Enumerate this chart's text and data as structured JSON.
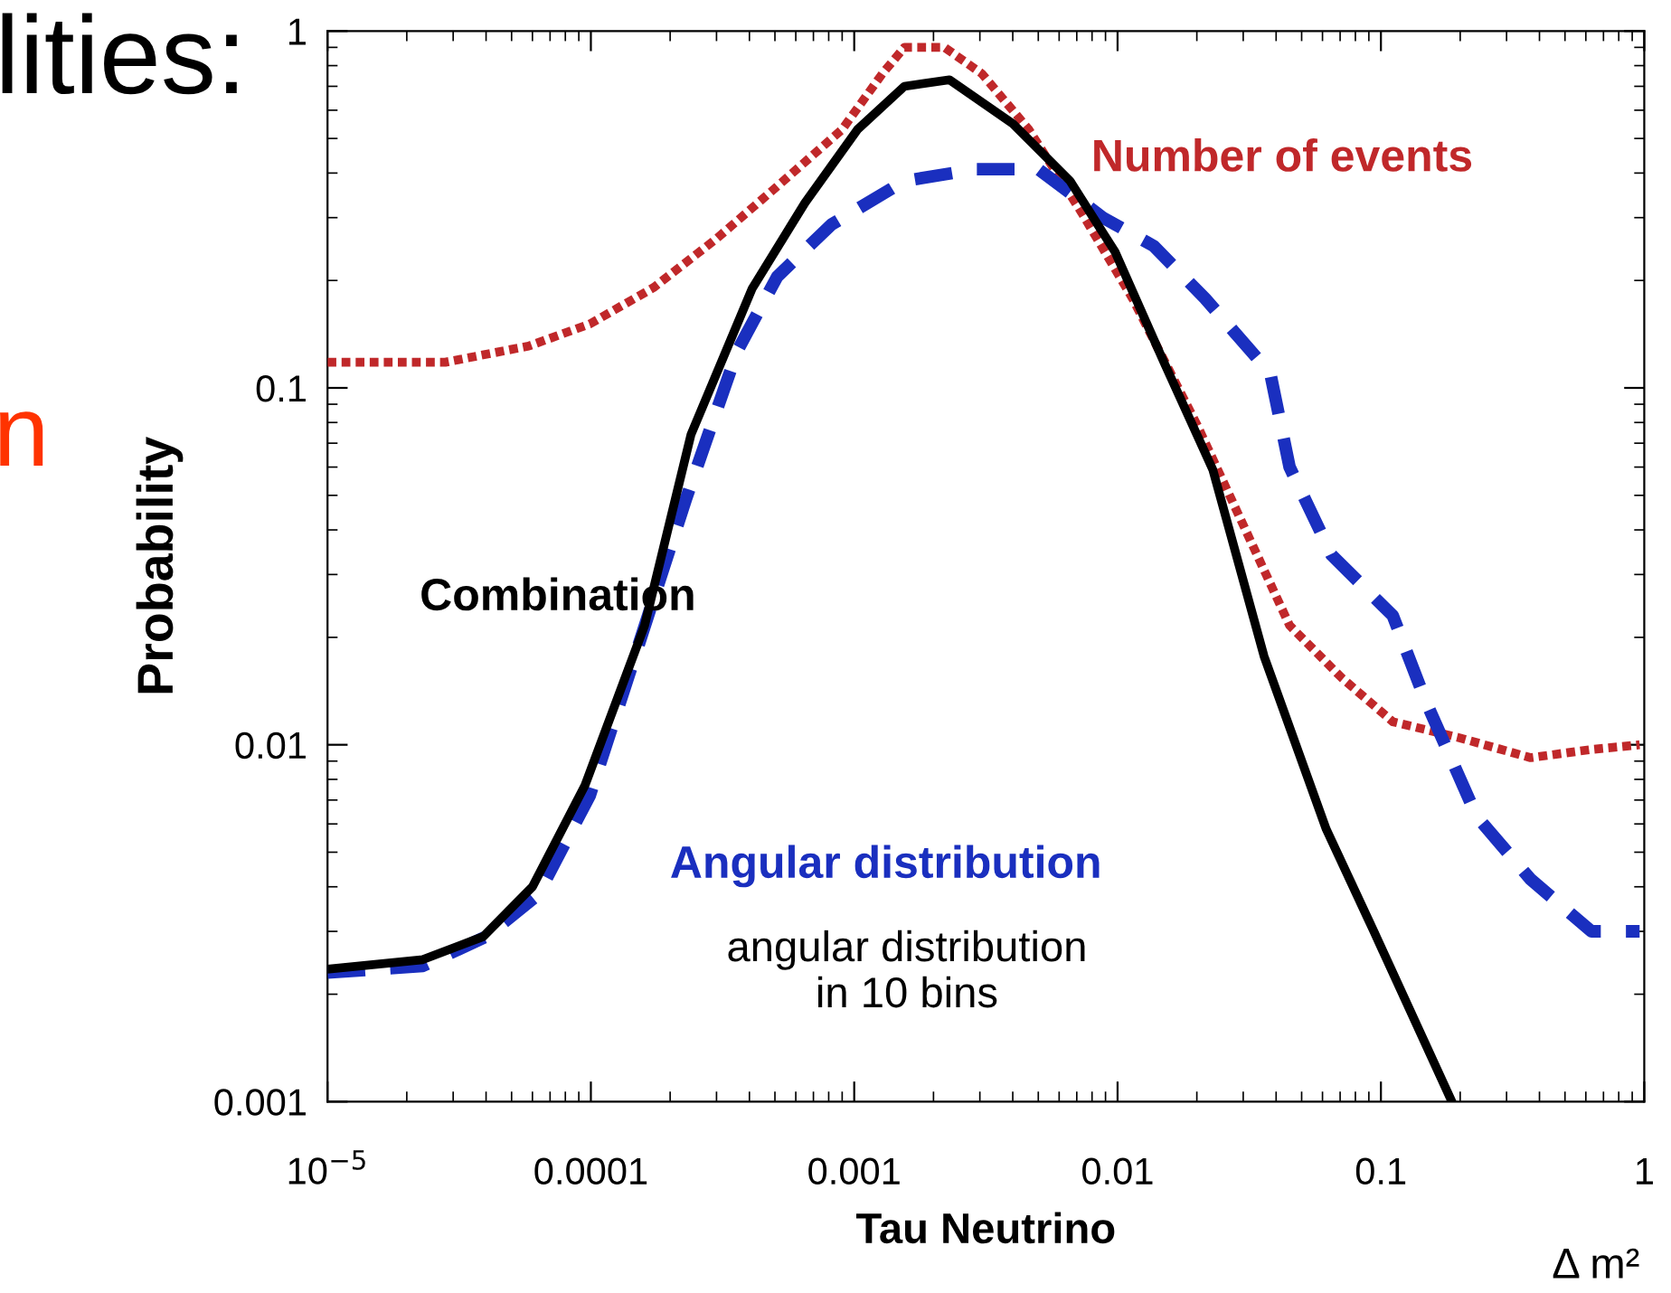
{
  "chart_data": {
    "type": "line",
    "xlabel": "Tau Neutrino",
    "ylabel": "Probability",
    "log": "xy",
    "grid": false,
    "legend": false,
    "xlim": [
      1e-05,
      1
    ],
    "ylim": [
      0.001,
      1
    ],
    "xticks": [
      {
        "value": 1e-05,
        "label": "10$^{−5}$"
      },
      0.0001,
      0.001,
      0.01,
      0.1,
      1
    ],
    "yticks": [
      0.001,
      0.01,
      0.1,
      1
    ],
    "annotations": [
      "angular distribution\nin 10 bins",
      "Δ m²",
      "lities:",
      "n"
    ],
    "series": [
      {
        "name": "Number of events",
        "color": "#c0282a",
        "line_style": "dotted",
        "x": [
          1e-05,
          2.8e-05,
          5.8e-05,
          9.9e-05,
          0.000173,
          0.0003,
          0.00051,
          0.0009,
          0.00128,
          0.00155,
          0.0022,
          0.00305,
          0.0046,
          0.0073,
          0.0114,
          0.02,
          0.045,
          0.071,
          0.111,
          0.195,
          0.37,
          0.63,
          0.96
        ],
        "values": [
          0.118,
          0.118,
          0.131,
          0.151,
          0.191,
          0.262,
          0.367,
          0.53,
          0.76,
          0.9,
          0.9,
          0.76,
          0.53,
          0.31,
          0.178,
          0.079,
          0.0216,
          0.0154,
          0.0116,
          0.0105,
          0.0092,
          0.0097,
          0.01
        ]
      },
      {
        "name": "Combination",
        "color": "#000000",
        "line_style": "solid",
        "x": [
          1e-05,
          2.3e-05,
          3.9e-05,
          6e-05,
          9.5e-05,
          0.00016,
          0.00024,
          0.00041,
          0.00065,
          0.00103,
          0.00155,
          0.0023,
          0.004,
          0.0066,
          0.0098,
          0.015,
          0.023,
          0.036,
          0.062,
          0.094,
          0.186
        ],
        "values": [
          0.00235,
          0.0025,
          0.0029,
          0.004,
          0.0077,
          0.0216,
          0.074,
          0.19,
          0.33,
          0.53,
          0.7,
          0.73,
          0.55,
          0.38,
          0.24,
          0.118,
          0.059,
          0.0177,
          0.0058,
          0.003,
          0.001
        ]
      },
      {
        "name": "Angular distribution",
        "color": "#1a2fbf",
        "line_style": "dashed",
        "x": [
          1e-05,
          2.3e-05,
          4e-05,
          6.3e-05,
          9.9e-05,
          0.00023,
          0.00036,
          0.00051,
          0.00082,
          0.00155,
          0.0029,
          0.005,
          0.0088,
          0.0137,
          0.0215,
          0.038,
          0.045,
          0.065,
          0.111,
          0.147,
          0.231,
          0.37,
          0.63,
          0.96
        ],
        "values": [
          0.0023,
          0.0024,
          0.0029,
          0.0038,
          0.0072,
          0.049,
          0.127,
          0.205,
          0.287,
          0.38,
          0.41,
          0.41,
          0.3,
          0.25,
          0.178,
          0.11,
          0.06,
          0.034,
          0.023,
          0.0134,
          0.0063,
          0.0042,
          0.003,
          0.003
        ]
      }
    ]
  }
}
